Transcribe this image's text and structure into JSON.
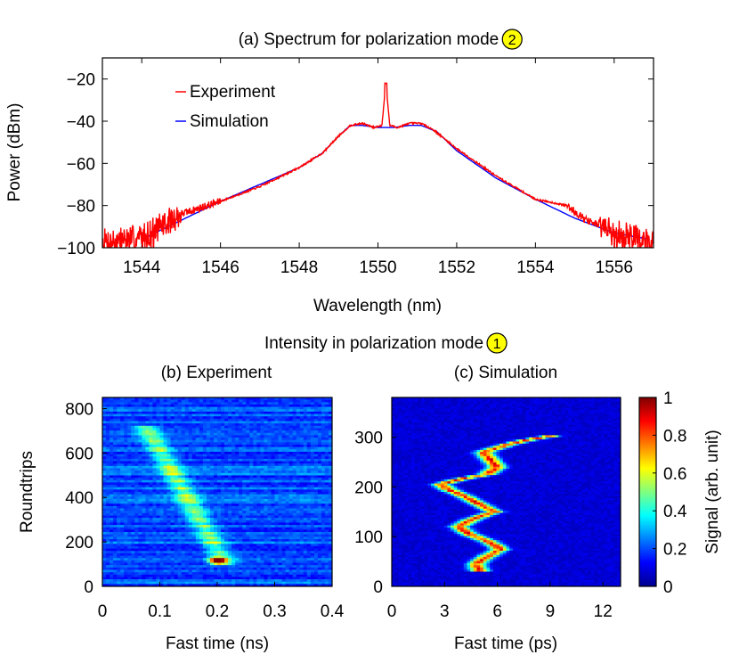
{
  "heading_intensity": {
    "prefix": "Intensity in polarization mode",
    "badge": "1"
  },
  "chart_data": [
    {
      "type": "line",
      "title": "(a) Spectrum for polarization mode",
      "title_badge": "2",
      "xlabel": "Wavelength (nm)",
      "ylabel": "Power (dBm)",
      "xlim": [
        1543,
        1557
      ],
      "ylim": [
        -100,
        -10
      ],
      "xticks": [
        1544,
        1546,
        1548,
        1550,
        1552,
        1554,
        1556
      ],
      "yticks": [
        -100,
        -80,
        -60,
        -40,
        -20
      ],
      "legend_position": "top-left",
      "series": [
        {
          "name": "Experiment",
          "color": "#ff0000",
          "x": [
            1543.2,
            1544.0,
            1545.0,
            1546.0,
            1547.0,
            1548.0,
            1548.6,
            1549.0,
            1549.3,
            1549.6,
            1549.9,
            1550.1,
            1550.2,
            1550.3,
            1550.5,
            1550.8,
            1551.1,
            1551.4,
            1552.0,
            1553.0,
            1554.0,
            1554.8,
            1555.3,
            1556.0,
            1556.9
          ],
          "y": [
            -97,
            -95,
            -84,
            -78,
            -71,
            -62,
            -55,
            -47,
            -42,
            -41,
            -43,
            -42,
            -22,
            -42,
            -43,
            -41,
            -41,
            -44,
            -53,
            -66,
            -77,
            -80,
            -87,
            -93,
            -96
          ]
        },
        {
          "name": "Simulation",
          "color": "#0000ff",
          "x": [
            1544.0,
            1545.0,
            1546.0,
            1547.0,
            1548.0,
            1548.6,
            1549.0,
            1549.3,
            1549.6,
            1550.0,
            1550.4,
            1550.8,
            1551.1,
            1551.5,
            1552.0,
            1553.0,
            1554.0,
            1555.0,
            1556.0,
            1556.9
          ],
          "y": [
            -96,
            -87,
            -78,
            -70,
            -62,
            -55,
            -47,
            -42,
            -42,
            -43,
            -43,
            -42,
            -42,
            -45,
            -54,
            -67,
            -77,
            -86,
            -93,
            -96
          ]
        }
      ]
    },
    {
      "type": "heatmap",
      "title": "(b) Experiment",
      "xlabel": "Fast time (ns)",
      "ylabel": "Roundtrips",
      "xlim": [
        0,
        0.4
      ],
      "ylim": [
        0,
        850
      ],
      "xticks": [
        "0",
        "0.1",
        "0.2",
        "0.3",
        "0.4"
      ],
      "yticks": [
        0,
        200,
        400,
        600,
        800
      ],
      "trace": {
        "x": [
          0.08,
          0.21
        ],
        "y": [
          700,
          120
        ],
        "peak": {
          "x": 0.2,
          "y": 115
        }
      }
    },
    {
      "type": "heatmap",
      "title": "(c) Simulation",
      "xlabel": "Fast time (ps)",
      "ylabel": "",
      "xlim": [
        0,
        13
      ],
      "ylim": [
        0,
        380
      ],
      "xticks": [
        0,
        3,
        6,
        9,
        12
      ],
      "yticks": [
        0,
        100,
        200,
        300
      ],
      "trace_x": [
        5.0,
        4.8,
        5.4,
        6.2,
        5.5,
        4.4,
        3.8,
        4.6,
        5.8,
        5.0,
        4.2,
        3.2,
        2.8,
        3.8,
        5.4,
        6.0,
        5.6,
        5.2,
        6.6,
        7.8,
        9.5
      ],
      "trace_y": [
        30,
        45,
        60,
        75,
        90,
        105,
        120,
        135,
        150,
        165,
        180,
        195,
        205,
        215,
        225,
        240,
        255,
        270,
        285,
        295,
        305
      ]
    }
  ],
  "colorbar": {
    "label": "Signal (arb. unit)",
    "ticks": [
      "0",
      "0.2",
      "0.4",
      "0.6",
      "0.8",
      "1"
    ],
    "range": [
      0,
      1
    ]
  }
}
